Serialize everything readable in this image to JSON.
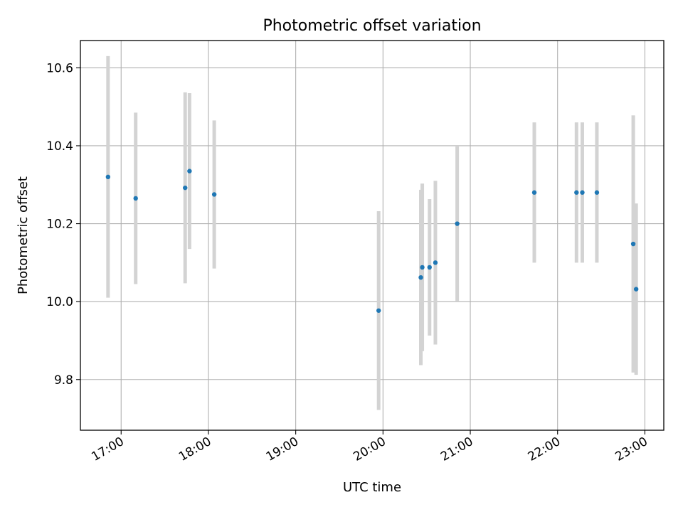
{
  "chart_data": {
    "type": "scatter",
    "title": "Photometric offset variation",
    "xlabel": "UTC time",
    "ylabel": "Photometric offset",
    "x_axis": "time",
    "xlim": [
      "16:32",
      "23:13"
    ],
    "ylim": [
      9.67,
      10.67
    ],
    "x_ticks": [
      "17:00",
      "18:00",
      "19:00",
      "20:00",
      "21:00",
      "22:00",
      "23:00"
    ],
    "y_ticks": [
      "9.8",
      "10.0",
      "10.2",
      "10.4",
      "10.6"
    ],
    "grid": true,
    "legend": "none",
    "series": [
      {
        "marker_color": "#1f77b4",
        "errorbar_color": "#d3d3d3",
        "points": [
          {
            "x": "16:51",
            "y": 10.32,
            "yerr": 0.31
          },
          {
            "x": "17:10",
            "y": 10.265,
            "yerr": 0.22
          },
          {
            "x": "17:44",
            "y": 10.292,
            "yerr": 0.245
          },
          {
            "x": "17:47",
            "y": 10.335,
            "yerr": 0.2
          },
          {
            "x": "18:04",
            "y": 10.275,
            "yerr": 0.19
          },
          {
            "x": "19:57",
            "y": 9.977,
            "yerr": 0.255
          },
          {
            "x": "20:26",
            "y": 10.062,
            "yerr": 0.225
          },
          {
            "x": "20:27",
            "y": 10.088,
            "yerr": 0.215
          },
          {
            "x": "20:32",
            "y": 10.088,
            "yerr": 0.175
          },
          {
            "x": "20:36",
            "y": 10.1,
            "yerr": 0.21
          },
          {
            "x": "20:51",
            "y": 10.2,
            "yerr": 0.2
          },
          {
            "x": "21:44",
            "y": 10.28,
            "yerr": 0.18
          },
          {
            "x": "22:13",
            "y": 10.28,
            "yerr": 0.18
          },
          {
            "x": "22:17",
            "y": 10.28,
            "yerr": 0.18
          },
          {
            "x": "22:27",
            "y": 10.28,
            "yerr": 0.18
          },
          {
            "x": "22:52",
            "y": 10.148,
            "yerr": 0.33
          },
          {
            "x": "22:54",
            "y": 10.032,
            "yerr": 0.22
          }
        ]
      }
    ]
  }
}
